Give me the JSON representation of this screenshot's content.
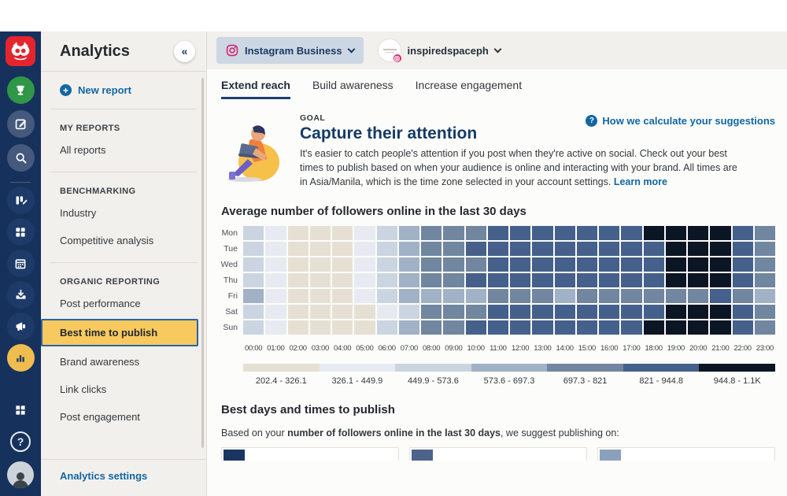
{
  "icons": {
    "collapse": "«",
    "plus": "+",
    "question": "?"
  },
  "rail": {
    "icons": [
      "hootsuite-owl-logo",
      "trophy-icon",
      "compose-icon",
      "search-icon",
      "streams-icon",
      "dashboards-icon",
      "planner-calendar-icon",
      "inbox-icon",
      "promote-megaphone-icon",
      "analytics-bars-icon",
      "apps-grid-icon",
      "help-icon",
      "profile-avatar"
    ]
  },
  "sidebar": {
    "title": "Analytics",
    "new_report": "New report",
    "sections": [
      {
        "label": "MY REPORTS",
        "items": [
          {
            "label": "All reports"
          }
        ]
      },
      {
        "label": "BENCHMARKING",
        "items": [
          {
            "label": "Industry"
          },
          {
            "label": "Competitive analysis"
          }
        ]
      },
      {
        "label": "ORGANIC REPORTING",
        "items": [
          {
            "label": "Post performance"
          },
          {
            "label": "Best time to publish",
            "active": true
          },
          {
            "label": "Brand awareness"
          },
          {
            "label": "Link clicks"
          },
          {
            "label": "Post engagement"
          }
        ]
      }
    ],
    "settings": "Analytics settings"
  },
  "topbar": {
    "network": "Instagram Business",
    "account": "inspiredspaceph"
  },
  "tabs": [
    {
      "label": "Extend reach",
      "active": true
    },
    {
      "label": "Build awareness",
      "active": false
    },
    {
      "label": "Increase engagement",
      "active": false
    }
  ],
  "goal": {
    "eyebrow": "GOAL",
    "title": "Capture their attention",
    "body": "It's easier to catch people's attention if you post when they're active on social. Check out your best times to publish based on when your audience is online and interacting with your brand. All times are in Asia/Manila, which is the time zone selected in your account settings.",
    "learn_more": "Learn more",
    "help_link": "How we calculate your suggestions"
  },
  "chart_data": {
    "type": "heatmap",
    "title": "Average number of followers online in the last 30 days",
    "rows": [
      "Mon",
      "Tue",
      "Wed",
      "Thu",
      "Fri",
      "Sat",
      "Sun"
    ],
    "columns": [
      "00:00",
      "01:00",
      "02:00",
      "03:00",
      "04:00",
      "05:00",
      "06:00",
      "07:00",
      "08:00",
      "09:00",
      "10:00",
      "11:00",
      "12:00",
      "13:00",
      "14:00",
      "15:00",
      "16:00",
      "17:00",
      "18:00",
      "19:00",
      "20:00",
      "21:00",
      "22:00",
      "23:00"
    ],
    "palette": [
      "#e6e0d4",
      "#e7ebf1",
      "#cbd5e1",
      "#a1b1c6",
      "#71869f",
      "#45608a",
      "#0c1523"
    ],
    "legend_labels": [
      "202.4 - 326.1",
      "326.1 - 449.9",
      "449.9 - 573.6",
      "573.6 - 697.3",
      "697.3 - 821",
      "821 - 944.8",
      "944.8 - 1.1K"
    ],
    "legend_position": "bottom",
    "values": [
      [
        2,
        1,
        0,
        0,
        0,
        1,
        2,
        3,
        4,
        4,
        4,
        5,
        5,
        5,
        5,
        5,
        5,
        5,
        6,
        6,
        6,
        6,
        5,
        4
      ],
      [
        2,
        1,
        0,
        0,
        0,
        1,
        2,
        3,
        4,
        4,
        5,
        5,
        5,
        5,
        5,
        5,
        5,
        5,
        5,
        6,
        6,
        6,
        5,
        4
      ],
      [
        2,
        1,
        0,
        0,
        0,
        1,
        2,
        3,
        4,
        4,
        4,
        5,
        5,
        5,
        5,
        5,
        5,
        5,
        5,
        6,
        6,
        6,
        5,
        4
      ],
      [
        2,
        1,
        0,
        0,
        0,
        1,
        2,
        3,
        4,
        4,
        5,
        5,
        5,
        5,
        5,
        5,
        5,
        5,
        5,
        6,
        6,
        6,
        5,
        4
      ],
      [
        3,
        1,
        0,
        0,
        0,
        1,
        2,
        3,
        3,
        3,
        3,
        4,
        4,
        4,
        3,
        4,
        4,
        4,
        4,
        4,
        4,
        5,
        4,
        3
      ],
      [
        2,
        1,
        0,
        0,
        0,
        0,
        1,
        2,
        4,
        4,
        4,
        5,
        5,
        5,
        5,
        5,
        5,
        5,
        5,
        6,
        6,
        6,
        5,
        4
      ],
      [
        2,
        1,
        0,
        0,
        0,
        0,
        2,
        3,
        4,
        4,
        5,
        5,
        5,
        5,
        5,
        5,
        5,
        5,
        6,
        6,
        6,
        6,
        5,
        4
      ]
    ]
  },
  "suggest": {
    "title": "Best days and times to publish",
    "body_prefix": "Based on your ",
    "body_bold": "number of followers online in the last 30 days",
    "body_suffix": ", we suggest publishing on:",
    "cards": [
      {
        "color": "#1a3561"
      },
      {
        "color": "#4c648c"
      },
      {
        "color": "#8ba0ba"
      }
    ]
  }
}
